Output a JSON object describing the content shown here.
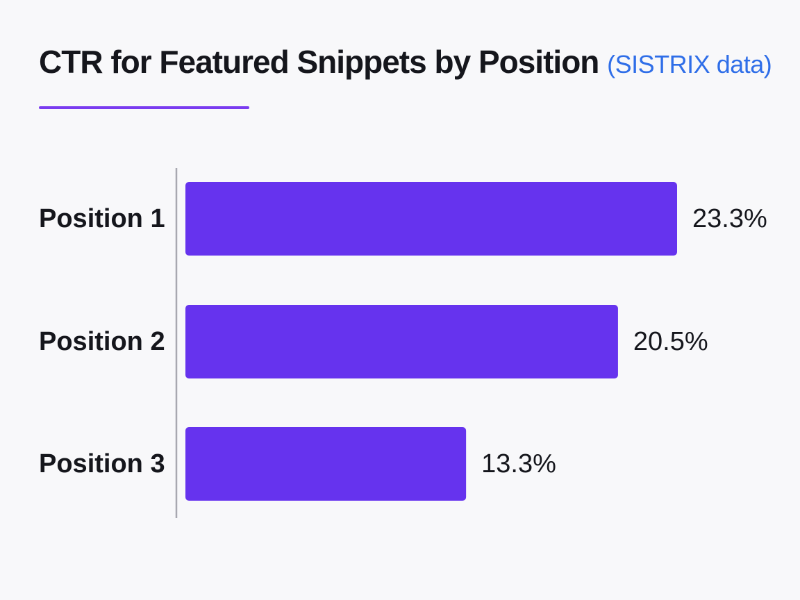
{
  "header": {
    "title_main": "CTR for Featured Snippets by Position",
    "title_source": "(SISTRIX data)"
  },
  "colors": {
    "bar": "#6633ee",
    "accent_underline": "#7a3cf0",
    "source_text": "#2f6ee8",
    "axis": "#a8a8b0",
    "text": "#15161c",
    "background": "#f8f8fa"
  },
  "chart_data": {
    "type": "bar",
    "orientation": "horizontal",
    "title": "CTR for Featured Snippets by Position (SISTRIX data)",
    "categories": [
      "Position 1",
      "Position 2",
      "Position 3"
    ],
    "values": [
      23.3,
      20.5,
      13.3
    ],
    "value_labels": [
      "23.3%",
      "20.5%",
      "13.3%"
    ],
    "unit": "%",
    "xlabel": "",
    "ylabel": "",
    "grid": false,
    "legend": "none"
  }
}
